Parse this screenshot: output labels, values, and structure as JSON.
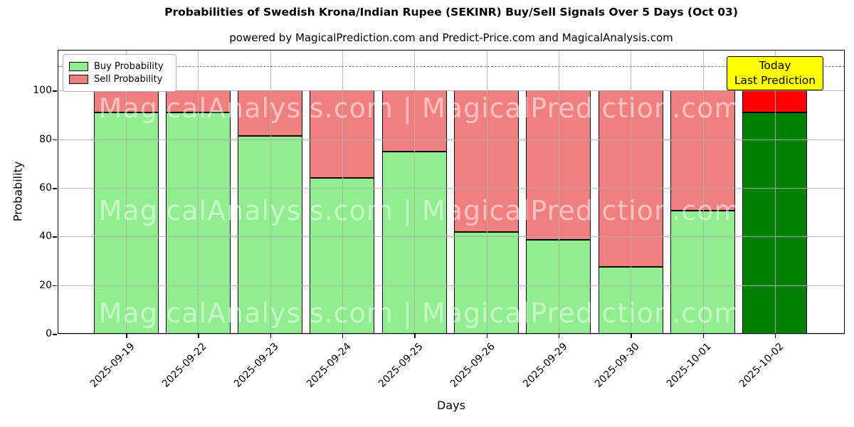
{
  "chart_data": {
    "type": "bar",
    "stacked": true,
    "title": "Probabilities of Swedish Krona/Indian Rupee (SEKINR) Buy/Sell Signals Over 5 Days (Oct 03)",
    "subtitle": "powered by MagicalPrediction.com and Predict-Price.com and MagicalAnalysis.com",
    "xlabel": "Days",
    "ylabel": "Probability",
    "categories": [
      "2025-09-19",
      "2025-09-22",
      "2025-09-23",
      "2025-09-24",
      "2025-09-25",
      "2025-09-26",
      "2025-09-29",
      "2025-09-30",
      "2025-10-01",
      "2025-10-02"
    ],
    "series": [
      {
        "name": "Buy Probability",
        "color": "#90EE90",
        "today_color": "#008000",
        "values": [
          91,
          91,
          81.5,
          64,
          75,
          42,
          38.5,
          27.5,
          50.5,
          91
        ]
      },
      {
        "name": "Sell Probability",
        "color": "#F08080",
        "today_color": "#FF0000",
        "values": [
          9,
          9,
          18.5,
          36,
          25,
          58,
          61.5,
          72.5,
          49.5,
          9
        ]
      }
    ],
    "stack_total": 100,
    "yticks": [
      0,
      20,
      40,
      60,
      80,
      100
    ],
    "ylim": [
      0,
      116.8
    ],
    "grid": true,
    "legend_position": "upper left",
    "dashed_line_y": 110,
    "dashed_line_color": "#7f7f7f",
    "today_annotation": {
      "line1": "Today",
      "line2": "Last Prediction",
      "bg_color": "#FFFF00",
      "index": 9
    },
    "watermark": {
      "text": "MagicalAnalysis.com | MagicalPrediction.com",
      "rows": 3
    }
  }
}
